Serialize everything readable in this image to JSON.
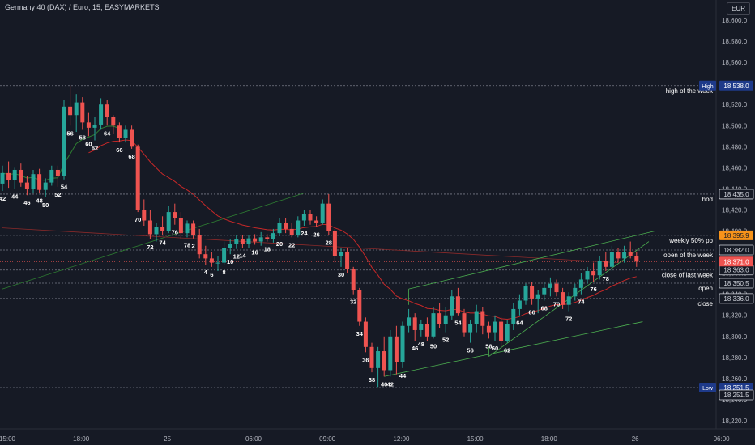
{
  "header": {
    "title": "Germany 40 (DAX) / Euro, 15, EASYMARKETS",
    "currency": "EUR"
  },
  "colors": {
    "background": "#161a25",
    "up": "#26a69a",
    "down": "#ef5350",
    "ma_red": "#c62828",
    "ma_green": "#2e7d32",
    "grid_text": "#b2b5be",
    "level_line": "#787b86",
    "orange": "#f7931a",
    "high_low_tag": "#1e3a8a"
  },
  "chart_data": {
    "type": "candlestick",
    "symbol": "Germany 40 (DAX) / Euro",
    "timeframe": "15",
    "y_ticks": [
      18600,
      18580,
      18560,
      18540,
      18520,
      18500,
      18480,
      18460,
      18440,
      18420,
      18400,
      18380,
      18360,
      18340,
      18320,
      18300,
      18280,
      18260,
      18240,
      18220
    ],
    "y_tick_labels": [
      "18,600.0",
      "18,580.0",
      "18,560.0",
      "18,540.0",
      "18,520.0",
      "18,500.0",
      "18,480.0",
      "18,460.0",
      "18,440.0",
      "18,420.0",
      "18,400.0",
      "18,380.0",
      "18,360.0",
      "18,340.0",
      "18,320.0",
      "18,300.0",
      "18,280.0",
      "18,260.0",
      "18,240.0",
      "18,220.0"
    ],
    "x_tick_labels": [
      {
        "label": "15:00",
        "bar": 0
      },
      {
        "label": "18:00",
        "bar": 12
      },
      {
        "label": "25",
        "bar": 26
      },
      {
        "label": "06:00",
        "bar": 40
      },
      {
        "label": "09:00",
        "bar": 52
      },
      {
        "label": "12:00",
        "bar": 64
      },
      {
        "label": "15:00",
        "bar": 76
      },
      {
        "label": "18:00",
        "bar": 88
      },
      {
        "label": "26",
        "bar": 102
      },
      {
        "label": "06:00",
        "bar": 116
      }
    ],
    "levels": [
      {
        "price": 18538.0,
        "label": "high of the week",
        "price_label": "18,538.0",
        "tag": "High"
      },
      {
        "price": 18435.0,
        "label": "hod",
        "price_label": "18,435.0"
      },
      {
        "price": 18395.9,
        "label": "weekly 50% pb",
        "price_label": "18,395.9"
      },
      {
        "price": 18382.0,
        "label": "open of the week",
        "price_label": "18,382.0"
      },
      {
        "price": 18363.0,
        "label": "close of last week",
        "price_label": "18,363.0"
      },
      {
        "price": 18350.5,
        "label": "open",
        "price_label": "18,350.5"
      },
      {
        "price": 18336.0,
        "label": "close",
        "price_label": "18,336.0"
      },
      {
        "price": 18251.5,
        "label": "",
        "price_label": "18,251.5",
        "tag": "Low"
      }
    ],
    "current_price": {
      "price": 18371.0,
      "label": "18,371.0"
    },
    "lower_price_tag": {
      "price": 18251.5,
      "label": "18,251.5"
    },
    "candles": [
      [
        18445,
        18462,
        18438,
        18455
      ],
      [
        18455,
        18466,
        18441,
        18448
      ],
      [
        18448,
        18460,
        18440,
        18458
      ],
      [
        18458,
        18464,
        18442,
        18446
      ],
      [
        18446,
        18452,
        18434,
        18440
      ],
      [
        18440,
        18458,
        18436,
        18454
      ],
      [
        18454,
        18459,
        18436,
        18439
      ],
      [
        18439,
        18450,
        18432,
        18446
      ],
      [
        18446,
        18462,
        18443,
        18458
      ],
      [
        18458,
        18462,
        18442,
        18452
      ],
      [
        18452,
        18524,
        18449,
        18518
      ],
      [
        18518,
        18538,
        18500,
        18510
      ],
      [
        18510,
        18530,
        18494,
        18522
      ],
      [
        18522,
        18527,
        18496,
        18503
      ],
      [
        18503,
        18512,
        18490,
        18498
      ],
      [
        18498,
        18508,
        18486,
        18501
      ],
      [
        18501,
        18526,
        18496,
        18520
      ],
      [
        18520,
        18524,
        18500,
        18508
      ],
      [
        18508,
        18510,
        18492,
        18500
      ],
      [
        18500,
        18503,
        18484,
        18488
      ],
      [
        18488,
        18500,
        18484,
        18496
      ],
      [
        18496,
        18500,
        18478,
        18480
      ],
      [
        18480,
        18482,
        18418,
        18420
      ],
      [
        18420,
        18430,
        18405,
        18410
      ],
      [
        18410,
        18420,
        18392,
        18397
      ],
      [
        18397,
        18408,
        18390,
        18404
      ],
      [
        18404,
        18414,
        18396,
        18400
      ],
      [
        18400,
        18424,
        18398,
        18418
      ],
      [
        18418,
        18426,
        18406,
        18412
      ],
      [
        18412,
        18418,
        18392,
        18398
      ],
      [
        18398,
        18410,
        18394,
        18407
      ],
      [
        18407,
        18410,
        18393,
        18396
      ],
      [
        18396,
        18402,
        18374,
        18378
      ],
      [
        18378,
        18386,
        18368,
        18374
      ],
      [
        18374,
        18380,
        18366,
        18370
      ],
      [
        18370,
        18376,
        18362,
        18370
      ],
      [
        18370,
        18390,
        18368,
        18384
      ],
      [
        18384,
        18392,
        18378,
        18388
      ],
      [
        18388,
        18396,
        18383,
        18392
      ],
      [
        18392,
        18396,
        18384,
        18388
      ],
      [
        18388,
        18396,
        18384,
        18393
      ],
      [
        18393,
        18397,
        18387,
        18390
      ],
      [
        18390,
        18399,
        18386,
        18394
      ],
      [
        18394,
        18397,
        18390,
        18392
      ],
      [
        18392,
        18402,
        18389,
        18398
      ],
      [
        18398,
        18412,
        18395,
        18408
      ],
      [
        18408,
        18412,
        18398,
        18402
      ],
      [
        18402,
        18408,
        18394,
        18396
      ],
      [
        18396,
        18414,
        18394,
        18410
      ],
      [
        18410,
        18420,
        18405,
        18416
      ],
      [
        18416,
        18420,
        18406,
        18410
      ],
      [
        18410,
        18414,
        18404,
        18408
      ],
      [
        18408,
        18430,
        18406,
        18426
      ],
      [
        18426,
        18435,
        18396,
        18400
      ],
      [
        18400,
        18402,
        18370,
        18376
      ],
      [
        18376,
        18384,
        18366,
        18380
      ],
      [
        18380,
        18384,
        18360,
        18364
      ],
      [
        18364,
        18366,
        18340,
        18344
      ],
      [
        18344,
        18346,
        18310,
        18314
      ],
      [
        18314,
        18318,
        18285,
        18290
      ],
      [
        18290,
        18294,
        18266,
        18270
      ],
      [
        18270,
        18290,
        18252,
        18286
      ],
      [
        18286,
        18300,
        18262,
        18268
      ],
      [
        18268,
        18306,
        18262,
        18300
      ],
      [
        18300,
        18310,
        18264,
        18276
      ],
      [
        18276,
        18314,
        18270,
        18310
      ],
      [
        18310,
        18326,
        18304,
        18318
      ],
      [
        18318,
        18322,
        18296,
        18306
      ],
      [
        18306,
        18316,
        18300,
        18312
      ],
      [
        18312,
        18318,
        18296,
        18300
      ],
      [
        18300,
        18328,
        18298,
        18322
      ],
      [
        18322,
        18332,
        18308,
        18312
      ],
      [
        18312,
        18328,
        18304,
        18320
      ],
      [
        18320,
        18344,
        18316,
        18338
      ],
      [
        18338,
        18346,
        18320,
        18322
      ],
      [
        18322,
        18326,
        18300,
        18304
      ],
      [
        18304,
        18316,
        18294,
        18312
      ],
      [
        18312,
        18330,
        18304,
        18324
      ],
      [
        18324,
        18328,
        18302,
        18310
      ],
      [
        18310,
        18314,
        18298,
        18304
      ],
      [
        18304,
        18320,
        18296,
        18314
      ],
      [
        18314,
        18318,
        18290,
        18296
      ],
      [
        18296,
        18316,
        18294,
        18312
      ],
      [
        18312,
        18332,
        18306,
        18326
      ],
      [
        18326,
        18340,
        18320,
        18334
      ],
      [
        18334,
        18350,
        18330,
        18348
      ],
      [
        18348,
        18352,
        18330,
        18336
      ],
      [
        18336,
        18344,
        18322,
        18340
      ],
      [
        18340,
        18352,
        18334,
        18346
      ],
      [
        18346,
        18356,
        18338,
        18350
      ],
      [
        18350,
        18354,
        18338,
        18342
      ],
      [
        18342,
        18346,
        18326,
        18330
      ],
      [
        18330,
        18342,
        18324,
        18338
      ],
      [
        18338,
        18350,
        18334,
        18346
      ],
      [
        18346,
        18360,
        18340,
        18354
      ],
      [
        18354,
        18366,
        18350,
        18362
      ],
      [
        18362,
        18370,
        18352,
        18358
      ],
      [
        18358,
        18376,
        18354,
        18372
      ],
      [
        18372,
        18380,
        18362,
        18366
      ],
      [
        18366,
        18386,
        18362,
        18380
      ],
      [
        18380,
        18384,
        18370,
        18374
      ],
      [
        18374,
        18386,
        18370,
        18380
      ],
      [
        18380,
        18390,
        18374,
        18376
      ],
      [
        18376,
        18380,
        18366,
        18371
      ]
    ],
    "bar_count_labels": [
      {
        "bar": 0,
        "label": "42",
        "pos": "below"
      },
      {
        "bar": 2,
        "label": "44",
        "pos": "below"
      },
      {
        "bar": 4,
        "label": "46",
        "pos": "below"
      },
      {
        "bar": 6,
        "label": "48",
        "pos": "below"
      },
      {
        "bar": 7,
        "label": "50",
        "pos": "below"
      },
      {
        "bar": 9,
        "label": "52",
        "pos": "below"
      },
      {
        "bar": 10,
        "label": "54",
        "pos": "below"
      },
      {
        "bar": 11,
        "label": "56",
        "pos": "below"
      },
      {
        "bar": 13,
        "label": "58",
        "pos": "below"
      },
      {
        "bar": 14,
        "label": "60",
        "pos": "below"
      },
      {
        "bar": 15,
        "label": "62",
        "pos": "below"
      },
      {
        "bar": 17,
        "label": "64",
        "pos": "below"
      },
      {
        "bar": 19,
        "label": "66",
        "pos": "below"
      },
      {
        "bar": 21,
        "label": "68",
        "pos": "below"
      },
      {
        "bar": 22,
        "label": "70",
        "pos": "below"
      },
      {
        "bar": 24,
        "label": "72",
        "pos": "below"
      },
      {
        "bar": 26,
        "label": "74",
        "pos": "below"
      },
      {
        "bar": 28,
        "label": "76",
        "pos": "below"
      },
      {
        "bar": 30,
        "label": "78",
        "pos": "below"
      },
      {
        "bar": 31,
        "label": "2",
        "pos": "below"
      },
      {
        "bar": 33,
        "label": "4",
        "pos": "below"
      },
      {
        "bar": 34,
        "label": "6",
        "pos": "below"
      },
      {
        "bar": 36,
        "label": "8",
        "pos": "below"
      },
      {
        "bar": 37,
        "label": "10",
        "pos": "below"
      },
      {
        "bar": 38,
        "label": "12",
        "pos": "below"
      },
      {
        "bar": 39,
        "label": "14",
        "pos": "below"
      },
      {
        "bar": 41,
        "label": "16",
        "pos": "below"
      },
      {
        "bar": 43,
        "label": "18",
        "pos": "below"
      },
      {
        "bar": 45,
        "label": "20",
        "pos": "below"
      },
      {
        "bar": 47,
        "label": "22",
        "pos": "below"
      },
      {
        "bar": 49,
        "label": "24",
        "pos": "below"
      },
      {
        "bar": 51,
        "label": "26",
        "pos": "below"
      },
      {
        "bar": 53,
        "label": "28",
        "pos": "below"
      },
      {
        "bar": 55,
        "label": "30",
        "pos": "below"
      },
      {
        "bar": 57,
        "label": "32",
        "pos": "below"
      },
      {
        "bar": 58,
        "label": "34",
        "pos": "below"
      },
      {
        "bar": 59,
        "label": "36",
        "pos": "below"
      },
      {
        "bar": 60,
        "label": "38",
        "pos": "below"
      },
      {
        "bar": 62,
        "label": "40",
        "pos": "below"
      },
      {
        "bar": 63,
        "label": "42",
        "pos": "below"
      },
      {
        "bar": 65,
        "label": "44",
        "pos": "below"
      },
      {
        "bar": 67,
        "label": "46",
        "pos": "below"
      },
      {
        "bar": 68,
        "label": "48",
        "pos": "below"
      },
      {
        "bar": 70,
        "label": "50",
        "pos": "below"
      },
      {
        "bar": 72,
        "label": "52",
        "pos": "below"
      },
      {
        "bar": 74,
        "label": "54",
        "pos": "below"
      },
      {
        "bar": 76,
        "label": "56",
        "pos": "below"
      },
      {
        "bar": 79,
        "label": "58",
        "pos": "below"
      },
      {
        "bar": 80,
        "label": "60",
        "pos": "below"
      },
      {
        "bar": 82,
        "label": "62",
        "pos": "below"
      },
      {
        "bar": 84,
        "label": "64",
        "pos": "below"
      },
      {
        "bar": 86,
        "label": "66",
        "pos": "below"
      },
      {
        "bar": 88,
        "label": "68",
        "pos": "below"
      },
      {
        "bar": 90,
        "label": "70",
        "pos": "below"
      },
      {
        "bar": 92,
        "label": "72",
        "pos": "below"
      },
      {
        "bar": 94,
        "label": "74",
        "pos": "below"
      },
      {
        "bar": 96,
        "label": "76",
        "pos": "below"
      },
      {
        "bar": 98,
        "label": "78",
        "pos": "below"
      }
    ]
  }
}
